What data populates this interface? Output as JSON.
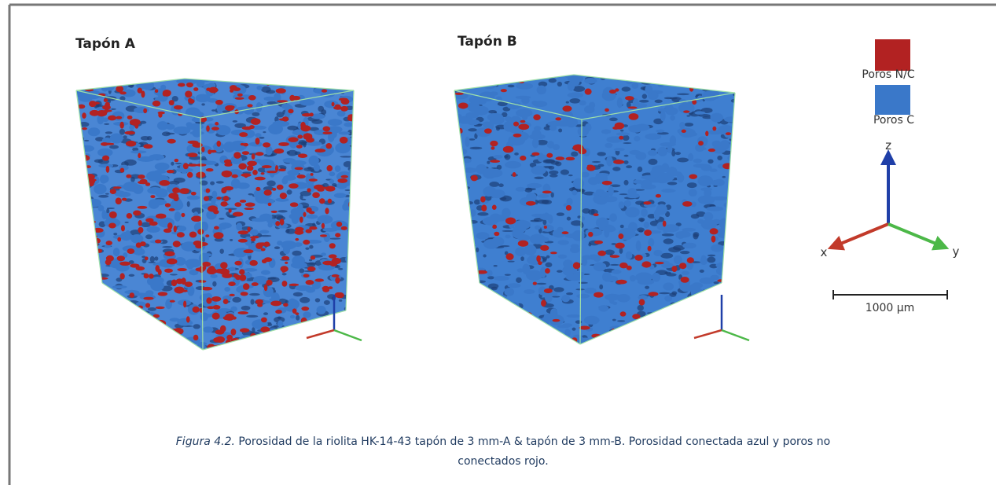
{
  "panels": [
    {
      "title": "Tapón A"
    },
    {
      "title": "Tapón B"
    }
  ],
  "legend": [
    {
      "label": "Poros N/C",
      "color": "#b22222"
    },
    {
      "label": "Poros C",
      "color": "#3a78c9"
    }
  ],
  "axes": {
    "z": "z",
    "x": "x",
    "y": "y"
  },
  "scale_bar": "1000 µm",
  "caption": {
    "label": "Figura 4.2.",
    "lines": [
      "Porosidad de la riolita HK-14-43 tapón de 3 mm-A & tapón de 3 mm-B. Porosidad conectada azul y poros no",
      "conectados rojo."
    ]
  }
}
